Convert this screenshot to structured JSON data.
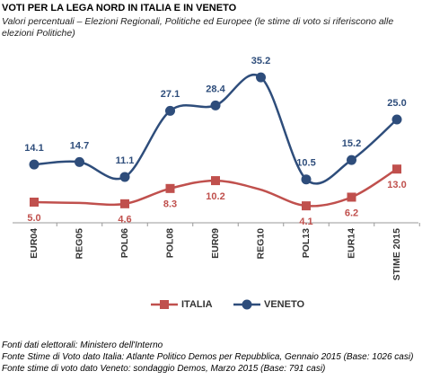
{
  "chart_data": {
    "type": "line",
    "title": "VOTI PER LA LEGA NORD IN ITALIA  E IN VENETO",
    "subtitle": "Valori percentuali – Elezioni Regionali, Politiche ed Europee (le stime di voto si riferiscono alle elezioni Politiche)",
    "categories": [
      "EUR04",
      "REG05",
      "POL06",
      "POL08",
      "EUR09",
      "REG10",
      "POL13",
      "EUR14",
      "STIME 2015"
    ],
    "series": [
      {
        "name": "ITALIA",
        "color": "#c0504d",
        "marker": "square",
        "values": [
          5.0,
          4.8,
          4.6,
          8.3,
          10.2,
          8.0,
          4.1,
          6.2,
          13.0
        ],
        "value_labels": [
          "5.0",
          null,
          "4.6",
          "8.3",
          "10.2",
          null,
          "4.1",
          "6.2",
          "13.0"
        ]
      },
      {
        "name": "VENETO",
        "color": "#2e4d7b",
        "marker": "circle",
        "values": [
          14.1,
          14.7,
          11.1,
          27.1,
          28.4,
          35.2,
          10.5,
          15.2,
          25.0
        ],
        "value_labels": [
          "14.1",
          "14.7",
          "11.1",
          "27.1",
          "28.4",
          "35.2",
          "10.5",
          "15.2",
          "25.0"
        ]
      }
    ],
    "ylim": [
      0,
      40
    ],
    "legend": "bottom",
    "notes": [
      "Fonti dati elettorali: Ministero dell'Interno",
      "Fonte Stime di Voto dato Italia:  Atlante Politico Demos per Repubblica, Gennaio 2015 (Base: 1026 casi)",
      "Fonte stime di voto dato Veneto: sondaggio Demos, Marzo 2015 (Base: 791 casi)"
    ]
  }
}
